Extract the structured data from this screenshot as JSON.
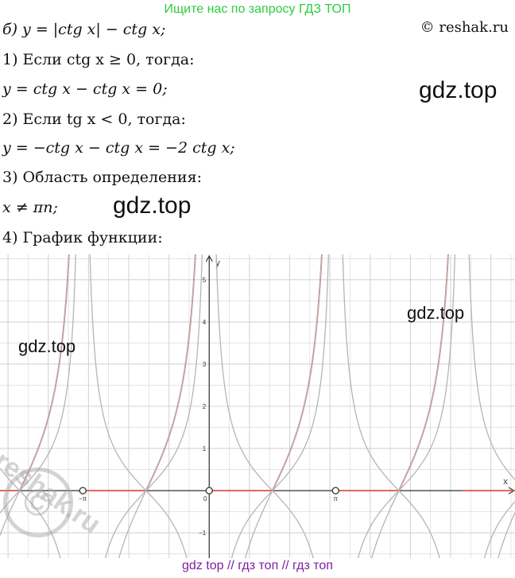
{
  "header": {
    "banner": "Ищите нас по запросу ГДЗ ТОП",
    "copyright": "© reshak.ru"
  },
  "lines": [
    {
      "id": "task",
      "text": "б) y = |ctg x| − ctg x;"
    },
    {
      "id": "case1",
      "text": "1) Если ctg x ≥ 0, тогда:"
    },
    {
      "id": "case1-result",
      "text": "y = ctg x − ctg x = 0;"
    },
    {
      "id": "case2",
      "text": "2) Если tg x < 0, тогда:"
    },
    {
      "id": "case2-result",
      "text": "y = −ctg x − ctg x = −2 ctg x;"
    },
    {
      "id": "domain-title",
      "text": "3) Область определения:"
    },
    {
      "id": "domain",
      "text": "x ≠ πn;"
    },
    {
      "id": "graph-title",
      "text": "4) График функции:"
    }
  ],
  "watermarks": {
    "gdz1": "gdz.top",
    "gdz2": "gdz.top",
    "gdz3": "gdz.top",
    "gdz4": "gdz.top",
    "reshak": "reshak.ru"
  },
  "footer": {
    "banner": "gdz top // гдз топ // гдз топ"
  },
  "chart_data": {
    "type": "line",
    "xlabel": "x",
    "ylabel": "y",
    "x_tick_labels": [
      "−π",
      "0",
      "π"
    ],
    "y_tick_labels": [
      "−1",
      "1",
      "2",
      "3",
      "4",
      "5"
    ],
    "xlim": [
      -5.2,
      7.6
    ],
    "ylim": [
      -1.6,
      5.6
    ],
    "grid": true,
    "colors": {
      "graph": "#d9534f",
      "helper": "#b5b5b5",
      "grid": "#d4d4d4",
      "axis": "#333333"
    },
    "series": [
      {
        "function": "y = |ctg x| − ctg x",
        "role": "graph"
      },
      {
        "function": "y = ctg x",
        "role": "helper"
      },
      {
        "function": "y = −ctg x",
        "role": "helper"
      },
      {
        "function": "y = −2 ctg x",
        "role": "helper"
      }
    ],
    "open_points": [
      [
        -3.1416,
        0
      ],
      [
        0,
        0
      ],
      [
        3.1416,
        0
      ]
    ]
  }
}
